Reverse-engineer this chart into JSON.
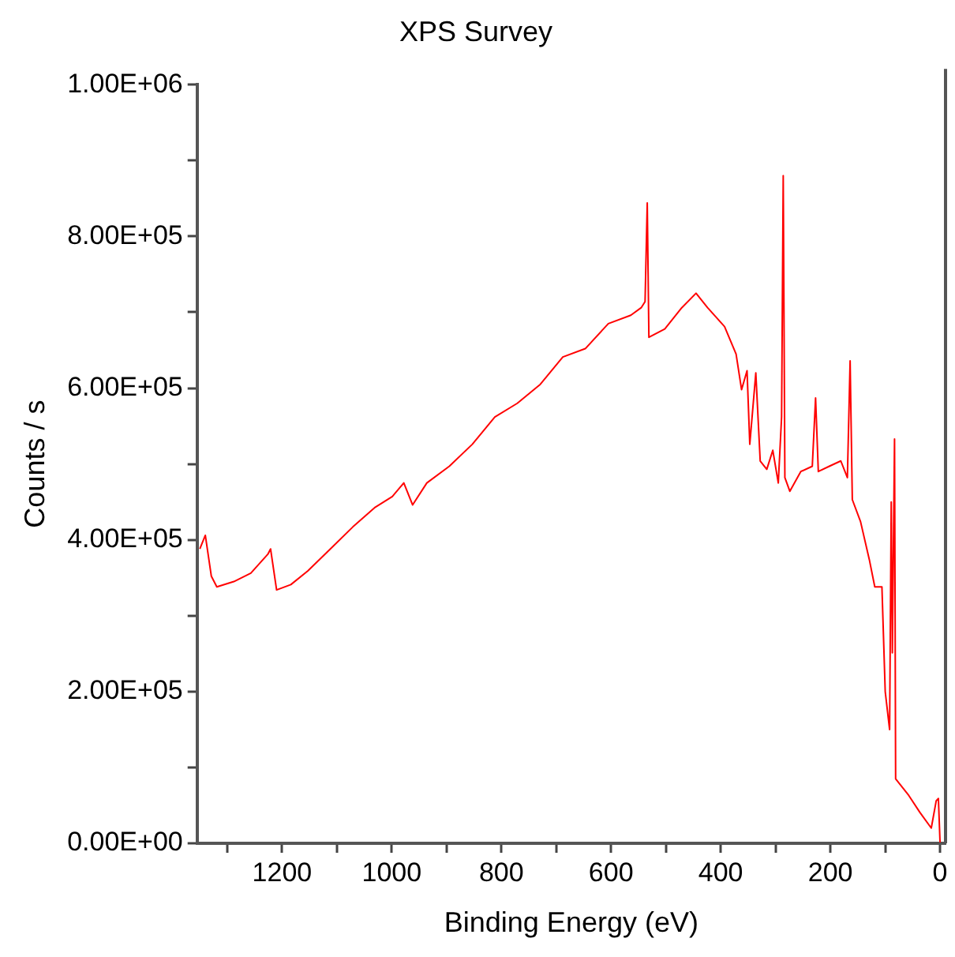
{
  "chart_data": {
    "type": "line",
    "title": "XPS Survey",
    "xlabel": "Binding Energy (eV)",
    "ylabel": "Counts / s",
    "xlim": [
      1355,
      -10
    ],
    "ylim": [
      0,
      1000000
    ],
    "xticks": [
      {
        "value": 1300,
        "label": null
      },
      1200,
      {
        "value": 1100,
        "label": null
      },
      1000,
      {
        "value": 900,
        "label": null
      },
      800,
      {
        "value": 700,
        "label": null
      },
      600,
      {
        "value": 500,
        "label": null
      },
      400,
      {
        "value": 300,
        "label": null
      },
      200,
      {
        "value": 100,
        "label": null
      },
      0
    ],
    "yticks": [
      {
        "value": 0,
        "label": "0.00E+00"
      },
      {
        "value": 100000,
        "label": null
      },
      {
        "value": 200000,
        "label": "2.00E+05"
      },
      {
        "value": 300000,
        "label": null
      },
      {
        "value": 400000,
        "label": "4.00E+05"
      },
      {
        "value": 500000,
        "label": null
      },
      {
        "value": 600000,
        "label": "6.00E+05"
      },
      {
        "value": 700000,
        "label": null
      },
      {
        "value": 800000,
        "label": "8.00E+05"
      },
      {
        "value": 900000,
        "label": null
      },
      {
        "value": 1000000,
        "label": "1.00E+06"
      }
    ],
    "grid": false,
    "legend": false,
    "marker": "none",
    "line_style": "solid",
    "series": [
      {
        "color": "#ff0000",
        "x": [
          1350,
          1340,
          1329,
          1319,
          1288,
          1257,
          1226,
          1221,
          1210,
          1184,
          1153,
          1112,
          1071,
          1030,
          999,
          978,
          962,
          936,
          895,
          853,
          812,
          771,
          729,
          688,
          647,
          605,
          564,
          545,
          538,
          534,
          531,
          502,
          471,
          445,
          424,
          393,
          372,
          362,
          352,
          347,
          336,
          328,
          316,
          305,
          295,
          289,
          286,
          283,
          274,
          254,
          233,
          227,
          222,
          202,
          181,
          169,
          164,
          160,
          145,
          129,
          119,
          106,
          100,
          92,
          89,
          87,
          83,
          81,
          57,
          37,
          16,
          7,
          3,
          0
        ],
        "values": [
          388000,
          406000,
          352000,
          338000,
          345000,
          356000,
          381000,
          388000,
          334000,
          341000,
          359000,
          388000,
          417000,
          443000,
          457000,
          475000,
          446000,
          475000,
          497000,
          526000,
          562000,
          580000,
          605000,
          641000,
          652000,
          685000,
          696000,
          706000,
          714000,
          844000,
          667000,
          678000,
          706000,
          725000,
          706000,
          681000,
          645000,
          598000,
          623000,
          526000,
          620000,
          504000,
          493000,
          518000,
          475000,
          562000,
          880000,
          482000,
          464000,
          490000,
          497000,
          587000,
          490000,
          497000,
          504000,
          482000,
          636000,
          453000,
          424000,
          374000,
          338000,
          338000,
          200000,
          150000,
          450000,
          251000,
          533000,
          85000,
          63000,
          41000,
          20000,
          56000,
          59000,
          1000
        ]
      }
    ]
  }
}
